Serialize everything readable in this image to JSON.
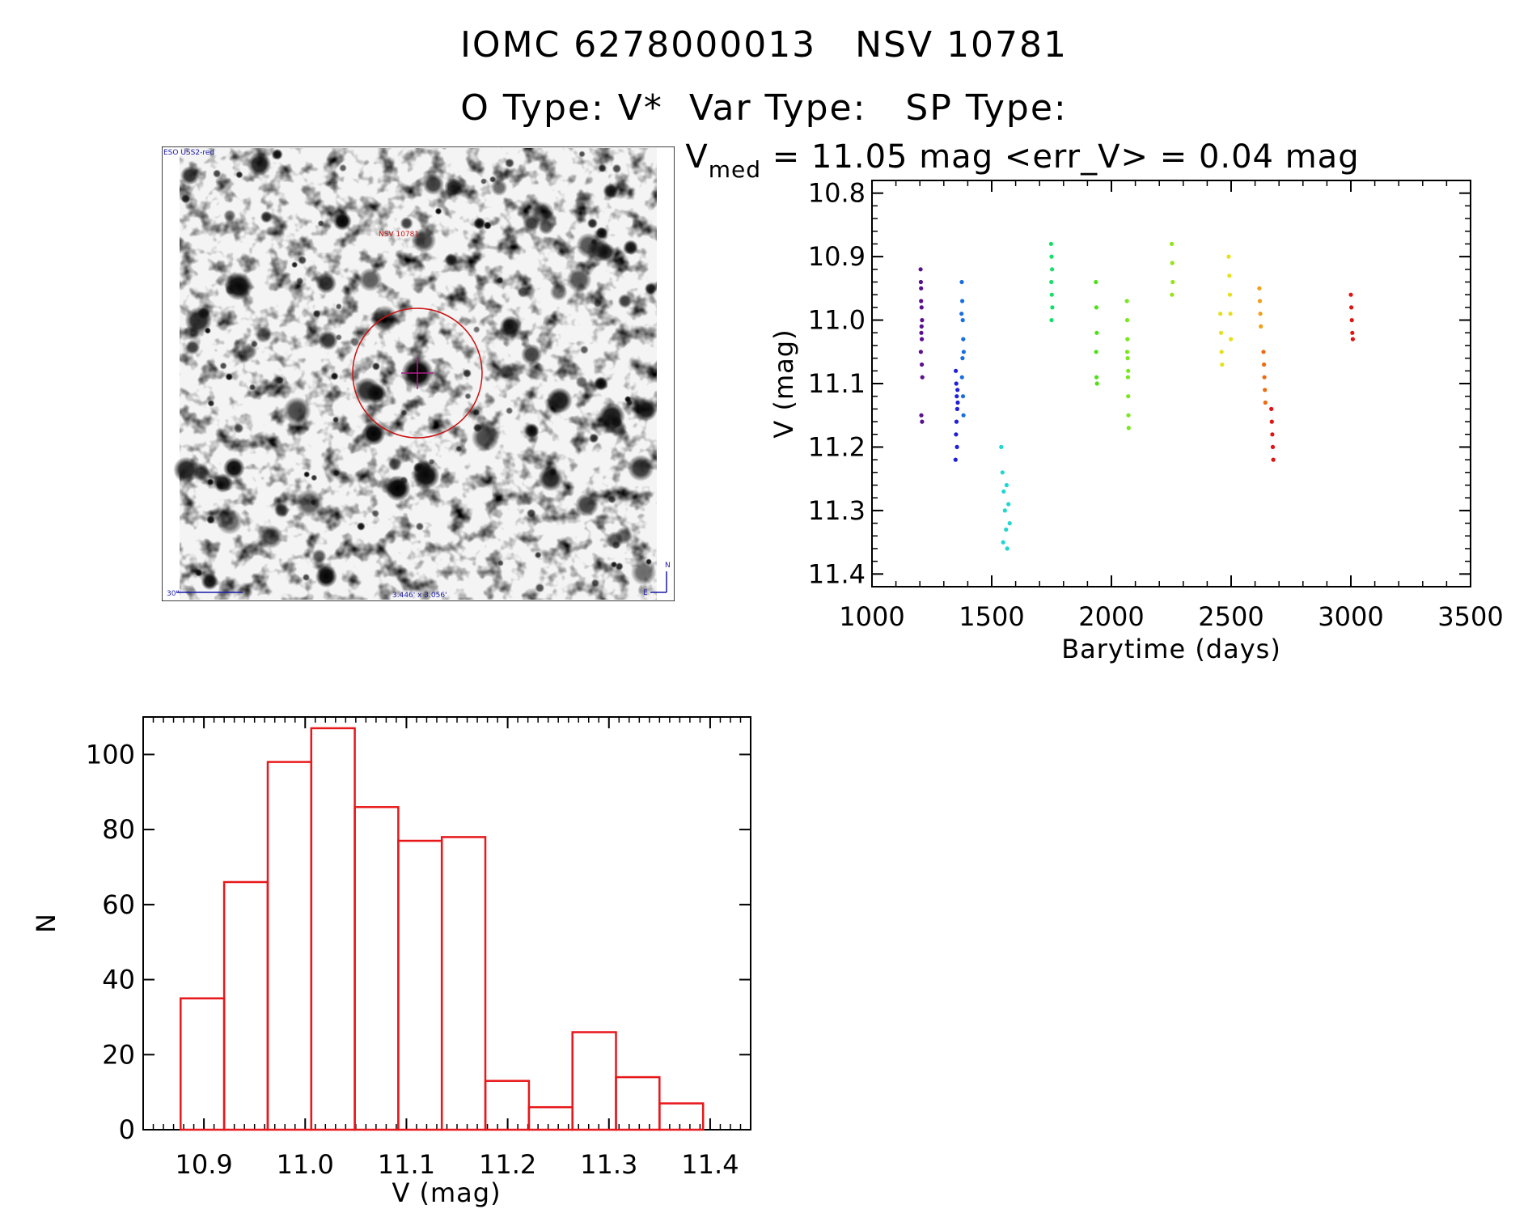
{
  "header": {
    "title": "IOMC 6278000013   NSV 10781",
    "subtitle": "O Type: V*  Var Type:   SP Type:"
  },
  "image_panel": {
    "survey_label": "ESO USS2-red",
    "object_label": "NSV 10781",
    "scale_label": "30\"",
    "size_label": "3.446' x 3.056'",
    "north_label": "N",
    "east_label": "E"
  },
  "chart_data": [
    {
      "type": "scatter",
      "title": "V_med = 11.05 mag <err_V> = 0.04 mag",
      "title_main": "V",
      "title_sub": "med",
      "title_rest": " = 11.05 mag <err_V> = 0.04 mag",
      "xlabel": "Barytime (days)",
      "ylabel": "V (mag)",
      "xlim": [
        1000,
        3500
      ],
      "ylim": [
        11.42,
        10.78
      ],
      "y_inverted": true,
      "xticks": [
        1000,
        1500,
        2000,
        2500,
        3000,
        3500
      ],
      "yticks": [
        10.8,
        10.9,
        11.0,
        11.1,
        11.2,
        11.3,
        11.4
      ],
      "ytick_labels": [
        "10.8",
        "10.9",
        "11.0",
        "11.1",
        "11.2",
        "11.3",
        "11.4"
      ],
      "grid": false,
      "series": [
        {
          "color": "#5a0f8c",
          "points": [
            [
              1203,
              10.92
            ],
            [
              1205,
              10.95
            ],
            [
              1207,
              10.98
            ],
            [
              1209,
              11.0
            ],
            [
              1206,
              11.02
            ],
            [
              1204,
              11.05
            ],
            [
              1208,
              11.07
            ],
            [
              1210,
              11.09
            ],
            [
              1205,
              10.97
            ],
            [
              1207,
              11.01
            ],
            [
              1206,
              11.15
            ],
            [
              1209,
              11.16
            ],
            [
              1204,
              10.94
            ],
            [
              1208,
              11.03
            ]
          ]
        },
        {
          "color": "#1f1fd9",
          "points": [
            [
              1350,
              11.08
            ],
            [
              1352,
              11.1
            ],
            [
              1354,
              11.12
            ],
            [
              1356,
              11.14
            ],
            [
              1353,
              11.16
            ],
            [
              1351,
              11.18
            ],
            [
              1355,
              11.2
            ],
            [
              1349,
              11.22
            ],
            [
              1357,
              11.11
            ],
            [
              1358,
              11.13
            ]
          ]
        },
        {
          "color": "#1a6fe0",
          "points": [
            [
              1375,
              10.94
            ],
            [
              1377,
              10.97
            ],
            [
              1379,
              11.0
            ],
            [
              1381,
              11.03
            ],
            [
              1378,
              11.06
            ],
            [
              1376,
              11.09
            ],
            [
              1380,
              11.12
            ],
            [
              1382,
              11.15
            ],
            [
              1374,
              10.99
            ],
            [
              1383,
              11.05
            ]
          ]
        },
        {
          "color": "#1fd6d0",
          "points": [
            [
              1540,
              11.2
            ],
            [
              1545,
              11.24
            ],
            [
              1550,
              11.27
            ],
            [
              1555,
              11.3
            ],
            [
              1560,
              11.33
            ],
            [
              1565,
              11.36
            ],
            [
              1570,
              11.29
            ],
            [
              1575,
              11.32
            ],
            [
              1548,
              11.35
            ],
            [
              1562,
              11.26
            ]
          ]
        },
        {
          "color": "#16e06a",
          "points": [
            [
              1748,
              10.88
            ],
            [
              1750,
              10.9
            ],
            [
              1752,
              10.92
            ],
            [
              1749,
              10.94
            ],
            [
              1751,
              10.96
            ],
            [
              1753,
              10.98
            ],
            [
              1750,
              11.0
            ]
          ]
        },
        {
          "color": "#4fe01a",
          "points": [
            [
              1935,
              10.94
            ],
            [
              1937,
              10.98
            ],
            [
              1939,
              11.02
            ],
            [
              1936,
              11.05
            ],
            [
              1938,
              11.09
            ],
            [
              1940,
              11.1
            ]
          ]
        },
        {
          "color": "#78e81a",
          "points": [
            [
              2065,
              10.97
            ],
            [
              2066,
              11.0
            ],
            [
              2067,
              11.03
            ],
            [
              2068,
              11.06
            ],
            [
              2069,
              11.09
            ],
            [
              2070,
              11.12
            ],
            [
              2071,
              11.15
            ],
            [
              2072,
              11.17
            ],
            [
              2066,
              11.05
            ],
            [
              2070,
              11.08
            ]
          ]
        },
        {
          "color": "#96e31a",
          "points": [
            [
              2252,
              10.88
            ],
            [
              2254,
              10.91
            ],
            [
              2256,
              10.94
            ],
            [
              2253,
              10.96
            ]
          ]
        },
        {
          "color": "#e6e01a",
          "points": [
            [
              2455,
              10.99
            ],
            [
              2458,
              11.02
            ],
            [
              2460,
              11.05
            ],
            [
              2462,
              11.07
            ],
            [
              2490,
              10.9
            ],
            [
              2493,
              10.93
            ],
            [
              2495,
              10.96
            ],
            [
              2497,
              10.99
            ],
            [
              2499,
              11.03
            ]
          ]
        },
        {
          "color": "#f0a01a",
          "points": [
            [
              2618,
              10.95
            ],
            [
              2620,
              10.97
            ],
            [
              2622,
              10.99
            ],
            [
              2624,
              11.01
            ]
          ]
        },
        {
          "color": "#f06a10",
          "points": [
            [
              2635,
              11.05
            ],
            [
              2637,
              11.07
            ],
            [
              2639,
              11.09
            ],
            [
              2641,
              11.11
            ],
            [
              2643,
              11.13
            ]
          ]
        },
        {
          "color": "#e01414",
          "points": [
            [
              2668,
              11.14
            ],
            [
              2670,
              11.16
            ],
            [
              2672,
              11.18
            ],
            [
              2674,
              11.2
            ],
            [
              2676,
              11.22
            ],
            [
              3000,
              10.96
            ],
            [
              3002,
              10.98
            ],
            [
              3004,
              11.0
            ],
            [
              3006,
              11.02
            ],
            [
              3008,
              11.03
            ]
          ]
        }
      ]
    },
    {
      "type": "bar",
      "xlabel": "V (mag)",
      "ylabel": "N",
      "xlim": [
        10.84,
        11.44
      ],
      "ylim": [
        0,
        110
      ],
      "xticks": [
        10.9,
        11.0,
        11.1,
        11.2,
        11.3,
        11.4
      ],
      "xtick_labels": [
        "10.9",
        "11.0",
        "11.1",
        "11.2",
        "11.3",
        "11.4"
      ],
      "yticks": [
        0,
        20,
        40,
        60,
        80,
        100
      ],
      "ytick_labels": [
        "0",
        "20",
        "40",
        "60",
        "80",
        "100"
      ],
      "bar_color": "#e8171a",
      "bin_edges": [
        10.877,
        10.92,
        10.963,
        11.006,
        11.049,
        11.092,
        11.135,
        11.178,
        11.221,
        11.264,
        11.307,
        11.35,
        11.393
      ],
      "values": [
        35,
        66,
        98,
        107,
        86,
        77,
        78,
        13,
        6,
        26,
        14,
        7
      ]
    }
  ]
}
